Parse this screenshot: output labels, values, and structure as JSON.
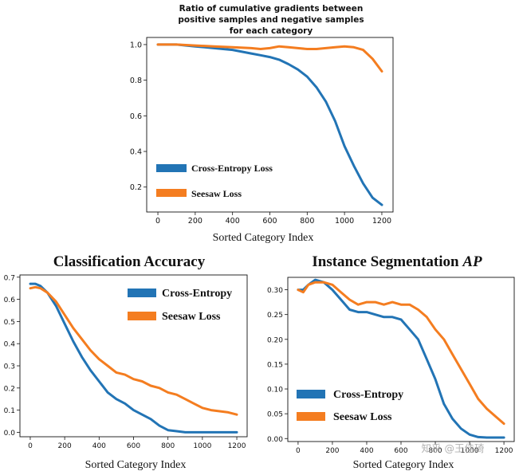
{
  "colors": {
    "cross_entropy": "#2274b5",
    "seesaw": "#f47d20",
    "axis": "#111111"
  },
  "watermark": "知乎 @王佳琦",
  "chart_data": [
    {
      "type": "line",
      "title_lines": [
        "Ratio of cumulative gradients between",
        "positive samples and negative samples",
        "for each category"
      ],
      "xlabel": "Sorted Category Index",
      "ylabel": "",
      "xlim": [
        -60,
        1260
      ],
      "ylim": [
        0.06,
        1.04
      ],
      "xticks": [
        0,
        200,
        400,
        600,
        800,
        1000,
        1200
      ],
      "yticks": [
        0.2,
        0.4,
        0.6,
        0.8,
        1.0
      ],
      "ytick_labels": [
        "0.2",
        "0.4",
        "0.6",
        "0.8",
        "1.0"
      ],
      "legend_position": "lower-left",
      "series": [
        {
          "name": "Cross-Entropy Loss",
          "color_key": "cross_entropy",
          "x": [
            0,
            100,
            200,
            300,
            400,
            500,
            550,
            600,
            650,
            700,
            750,
            800,
            850,
            900,
            950,
            1000,
            1050,
            1100,
            1150,
            1200
          ],
          "y": [
            1.0,
            1.0,
            0.99,
            0.98,
            0.97,
            0.95,
            0.94,
            0.93,
            0.915,
            0.89,
            0.86,
            0.82,
            0.76,
            0.68,
            0.57,
            0.43,
            0.32,
            0.22,
            0.14,
            0.1
          ]
        },
        {
          "name": "Seesaw Loss",
          "color_key": "seesaw",
          "x": [
            0,
            100,
            200,
            300,
            400,
            500,
            550,
            600,
            650,
            700,
            750,
            800,
            850,
            900,
            950,
            1000,
            1050,
            1100,
            1150,
            1200
          ],
          "y": [
            1.0,
            1.0,
            0.995,
            0.99,
            0.985,
            0.98,
            0.975,
            0.98,
            0.99,
            0.985,
            0.98,
            0.975,
            0.975,
            0.98,
            0.985,
            0.99,
            0.985,
            0.97,
            0.92,
            0.85
          ]
        }
      ]
    },
    {
      "type": "line",
      "title_lines": [
        "Classification Accuracy"
      ],
      "xlabel": "Sorted Category Index",
      "ylabel": "",
      "xlim": [
        -60,
        1260
      ],
      "ylim": [
        -0.02,
        0.71
      ],
      "xticks": [
        0,
        200,
        400,
        600,
        800,
        1000,
        1200
      ],
      "yticks": [
        0.0,
        0.1,
        0.2,
        0.3,
        0.4,
        0.5,
        0.6,
        0.7
      ],
      "ytick_labels": [
        "0.0",
        "0.1",
        "0.2",
        "0.3",
        "0.4",
        "0.5",
        "0.6",
        "0.7"
      ],
      "legend_position": "top-right",
      "series": [
        {
          "name": "Cross-Entropy",
          "color_key": "cross_entropy",
          "x": [
            0,
            30,
            60,
            100,
            150,
            200,
            250,
            300,
            350,
            400,
            450,
            500,
            550,
            600,
            650,
            700,
            750,
            800,
            850,
            900,
            950,
            1000,
            1100,
            1200
          ],
          "y": [
            0.67,
            0.67,
            0.66,
            0.63,
            0.57,
            0.49,
            0.41,
            0.34,
            0.28,
            0.23,
            0.18,
            0.15,
            0.13,
            0.1,
            0.08,
            0.06,
            0.03,
            0.01,
            0.005,
            0.0,
            0.0,
            0.0,
            0.0,
            0.0
          ]
        },
        {
          "name": "Seesaw Loss",
          "color_key": "seesaw",
          "x": [
            0,
            30,
            60,
            100,
            150,
            200,
            250,
            300,
            350,
            400,
            450,
            500,
            550,
            600,
            650,
            700,
            750,
            800,
            850,
            900,
            950,
            1000,
            1050,
            1100,
            1150,
            1200
          ],
          "y": [
            0.65,
            0.655,
            0.65,
            0.63,
            0.59,
            0.53,
            0.47,
            0.42,
            0.37,
            0.33,
            0.3,
            0.27,
            0.26,
            0.24,
            0.23,
            0.21,
            0.2,
            0.18,
            0.17,
            0.15,
            0.13,
            0.11,
            0.1,
            0.095,
            0.09,
            0.08
          ]
        }
      ]
    },
    {
      "type": "line",
      "title_lines": [
        "Instance Segmentation AP"
      ],
      "xlabel": "Sorted Category Index",
      "ylabel": "",
      "xlim": [
        -60,
        1260
      ],
      "ylim": [
        -0.006,
        0.325
      ],
      "xticks": [
        0,
        200,
        400,
        600,
        800,
        1000,
        1200
      ],
      "yticks": [
        0.0,
        0.05,
        0.1,
        0.15,
        0.2,
        0.25,
        0.3
      ],
      "ytick_labels": [
        "0.00",
        "0.05",
        "0.10",
        "0.15",
        "0.20",
        "0.25",
        "0.30"
      ],
      "legend_position": "lower-left",
      "series": [
        {
          "name": "Cross-Entropy",
          "color_key": "cross_entropy",
          "x": [
            0,
            30,
            60,
            100,
            150,
            200,
            250,
            300,
            350,
            400,
            450,
            500,
            550,
            600,
            650,
            700,
            750,
            800,
            850,
            900,
            950,
            1000,
            1050,
            1100,
            1150,
            1200
          ],
          "y": [
            0.3,
            0.3,
            0.31,
            0.32,
            0.315,
            0.3,
            0.28,
            0.26,
            0.255,
            0.255,
            0.25,
            0.245,
            0.245,
            0.24,
            0.22,
            0.2,
            0.16,
            0.12,
            0.07,
            0.04,
            0.02,
            0.008,
            0.003,
            0.002,
            0.002,
            0.002
          ]
        },
        {
          "name": "Seesaw Loss",
          "color_key": "seesaw",
          "x": [
            0,
            30,
            60,
            100,
            150,
            200,
            250,
            300,
            350,
            400,
            450,
            500,
            550,
            600,
            650,
            700,
            750,
            800,
            850,
            900,
            950,
            1000,
            1050,
            1100,
            1150,
            1200
          ],
          "y": [
            0.3,
            0.295,
            0.31,
            0.315,
            0.315,
            0.31,
            0.295,
            0.28,
            0.27,
            0.275,
            0.275,
            0.27,
            0.275,
            0.27,
            0.27,
            0.26,
            0.245,
            0.22,
            0.2,
            0.17,
            0.14,
            0.11,
            0.08,
            0.06,
            0.045,
            0.03
          ]
        }
      ]
    }
  ]
}
